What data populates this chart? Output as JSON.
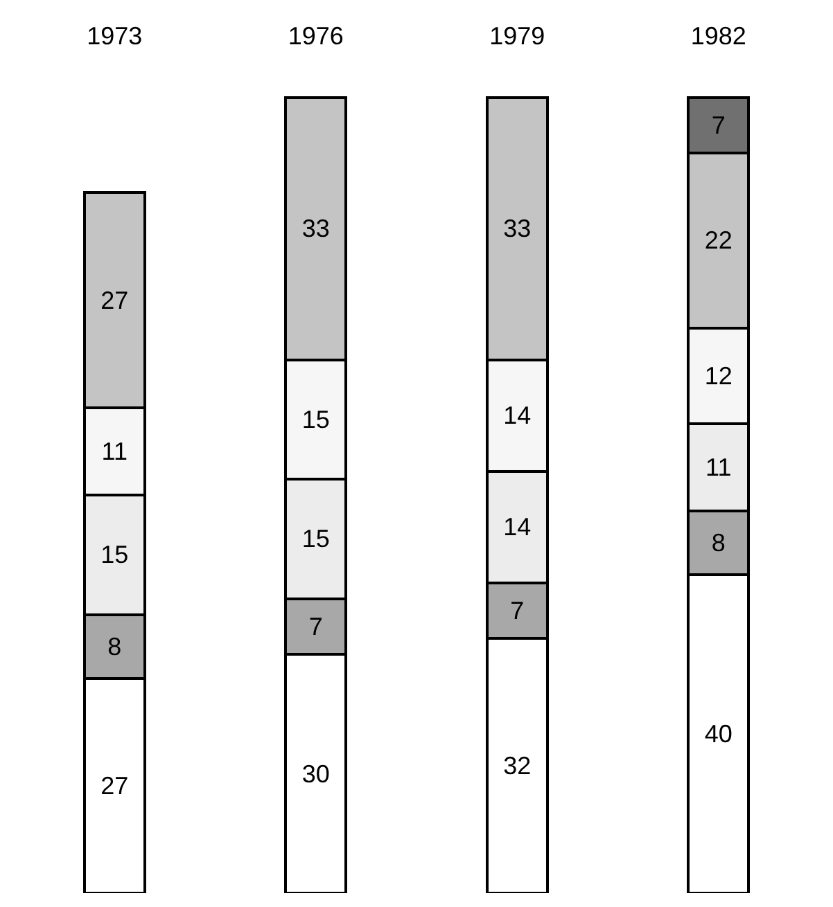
{
  "chart_data": {
    "type": "bar",
    "stacked": true,
    "data_labels": true,
    "categories": [
      "1973",
      "1976",
      "1979",
      "1982"
    ],
    "tick_labels": "x",
    "series": [
      {
        "color": "#ffffff",
        "values": [
          27,
          30,
          32,
          40
        ]
      },
      {
        "color": "#a8a8a8",
        "values": [
          8,
          7,
          7,
          8
        ]
      },
      {
        "color": "#ececec",
        "values": [
          15,
          15,
          14,
          11
        ]
      },
      {
        "color": "#f6f6f6",
        "values": [
          11,
          15,
          14,
          12
        ]
      },
      {
        "color": "#c4c4c4",
        "values": [
          27,
          33,
          33,
          22
        ]
      },
      {
        "color": "#707070",
        "values": [
          null,
          null,
          null,
          7
        ]
      }
    ]
  }
}
